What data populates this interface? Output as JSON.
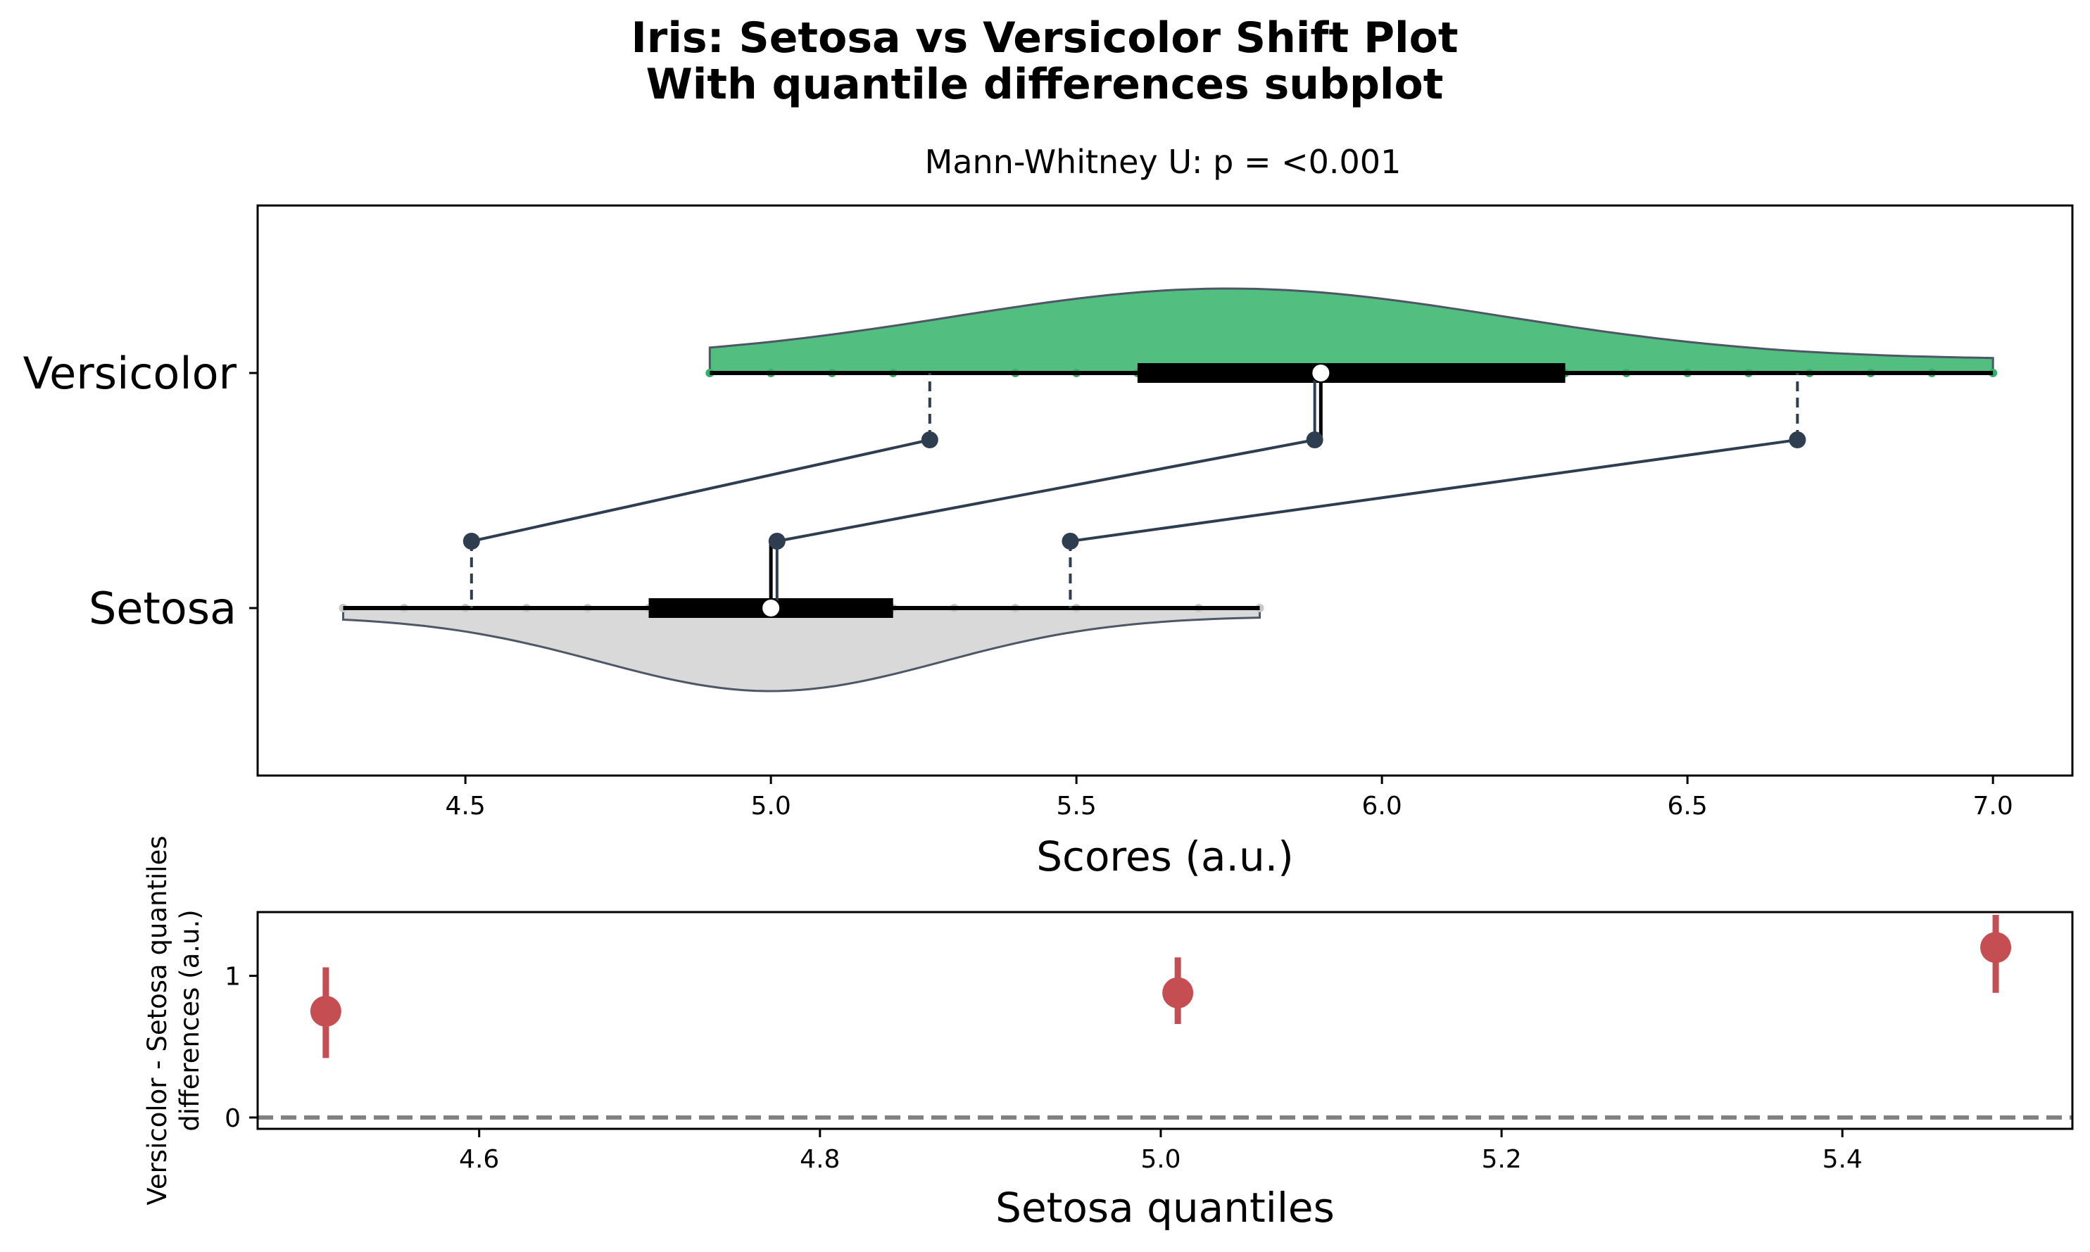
{
  "figure": {
    "title_line1": "Iris: Setosa vs Versicolor Shift Plot",
    "title_line2": "With quantile differences subplot"
  },
  "chart_data": [
    {
      "type": "shift-plot",
      "subtitle": "Mann-Whitney U: p = <0.001",
      "xlabel": "Scores (a.u.)",
      "xlim": [
        4.16,
        7.13
      ],
      "xticks": [
        "4.5",
        "5.0",
        "5.5",
        "6.0",
        "6.5",
        "7.0"
      ],
      "xtick_values": [
        4.5,
        5.0,
        5.5,
        6.0,
        6.5,
        7.0
      ],
      "categories": [
        "Setosa",
        "Versicolor"
      ],
      "groups": [
        {
          "name": "Setosa",
          "color": "#d9d9d9",
          "edge_color": "#4d5766",
          "range": [
            4.3,
            5.8
          ],
          "iqr": [
            4.8,
            5.2
          ],
          "median": 5.0,
          "points": [
            4.3,
            4.4,
            4.5,
            4.6,
            4.7,
            4.8,
            4.9,
            5.0,
            5.1,
            5.2,
            5.3,
            5.4,
            5.5,
            5.7,
            5.8
          ],
          "quantiles": [
            4.51,
            5.01,
            5.49
          ]
        },
        {
          "name": "Versicolor",
          "color": "#52be80",
          "edge_color": "#4d5766",
          "range": [
            4.9,
            7.0
          ],
          "iqr": [
            5.6,
            6.3
          ],
          "median": 5.9,
          "points": [
            4.9,
            5.0,
            5.1,
            5.2,
            5.4,
            5.5,
            5.6,
            5.7,
            5.8,
            5.9,
            6.0,
            6.1,
            6.2,
            6.3,
            6.4,
            6.5,
            6.6,
            6.7,
            6.8,
            6.9,
            7.0
          ],
          "quantiles": [
            5.26,
            5.89,
            6.68
          ]
        }
      ],
      "link_color": "#2e3d4f"
    },
    {
      "type": "scatter",
      "xlabel": "Setosa quantiles",
      "ylabel_line1": "Versicolor - Setosa quantiles",
      "ylabel_line2": "differences (a.u.)",
      "xlim": [
        4.47,
        5.535
      ],
      "ylim": [
        -0.08,
        1.45
      ],
      "xticks": [
        "4.6",
        "4.8",
        "5.0",
        "5.2",
        "5.4"
      ],
      "xtick_values": [
        4.6,
        4.8,
        5.0,
        5.2,
        5.4
      ],
      "yticks": [
        "0",
        "1"
      ],
      "ytick_values": [
        0,
        1
      ],
      "reference_line": 0,
      "color": "#c44e52",
      "points": [
        {
          "x": 4.51,
          "y": 0.75,
          "ci": [
            0.42,
            1.06
          ]
        },
        {
          "x": 5.01,
          "y": 0.88,
          "ci": [
            0.66,
            1.13
          ]
        },
        {
          "x": 5.49,
          "y": 1.2,
          "ci": [
            0.88,
            1.43
          ]
        }
      ]
    }
  ]
}
